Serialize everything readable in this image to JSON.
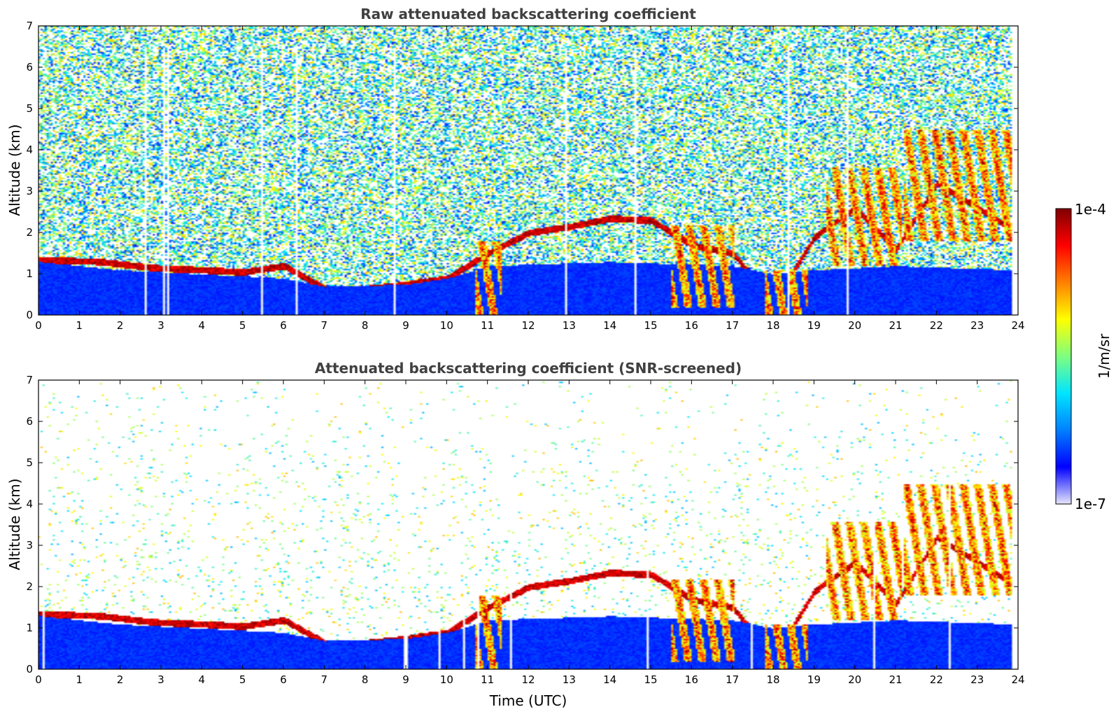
{
  "chart_data": [
    {
      "type": "heatmap",
      "title": "Raw attenuated backscattering coefficient",
      "xlabel": "",
      "ylabel": "Altitude (km)",
      "xlim": [
        0,
        24
      ],
      "ylim": [
        0,
        7
      ],
      "x_ticks": [
        "0",
        "1",
        "2",
        "3",
        "4",
        "5",
        "6",
        "7",
        "8",
        "9",
        "10",
        "11",
        "12",
        "13",
        "14",
        "15",
        "16",
        "17",
        "18",
        "19",
        "20",
        "21",
        "22",
        "23",
        "24"
      ],
      "y_ticks": [
        "0",
        "1",
        "2",
        "3",
        "4",
        "5",
        "6",
        "7"
      ],
      "features": {
        "boundary_layer_top_km": [
          [
            0,
            1.3
          ],
          [
            2,
            1.1
          ],
          [
            4,
            1.0
          ],
          [
            6,
            0.9
          ],
          [
            7,
            0.7
          ],
          [
            9,
            0.75
          ],
          [
            10,
            0.9
          ],
          [
            11,
            1.2
          ],
          [
            14,
            1.3
          ],
          [
            17,
            1.2
          ],
          [
            18,
            1.0
          ],
          [
            19,
            1.1
          ],
          [
            21,
            1.2
          ],
          [
            24,
            1.1
          ]
        ],
        "cloud_layer_km": [
          [
            0,
            1.35
          ],
          [
            1.5,
            1.3
          ],
          [
            2.8,
            1.15
          ],
          [
            4,
            1.1
          ],
          [
            5,
            1.05
          ],
          [
            6,
            1.2
          ],
          [
            7,
            0.65
          ],
          [
            8,
            0.65
          ],
          [
            9,
            0.75
          ],
          [
            10,
            0.9
          ],
          [
            11,
            1.5
          ],
          [
            12,
            2.0
          ],
          [
            13,
            2.15
          ],
          [
            14,
            2.35
          ],
          [
            15,
            2.3
          ],
          [
            16,
            1.7
          ],
          [
            17,
            1.5
          ],
          [
            18,
            0.3
          ],
          [
            19,
            1.9
          ],
          [
            20,
            2.6
          ],
          [
            21,
            1.6
          ],
          [
            22,
            3.2
          ],
          [
            23,
            2.6
          ],
          [
            23.8,
            2.1
          ]
        ],
        "thick_plumes": [
          {
            "t0": 10.7,
            "t1": 11.3,
            "z0": 0,
            "z1": 1.8
          },
          {
            "t0": 15.5,
            "t1": 17.0,
            "z0": 0.2,
            "z1": 2.2
          },
          {
            "t0": 17.8,
            "t1": 18.8,
            "z0": 0,
            "z1": 1.1
          },
          {
            "t0": 19.3,
            "t1": 21.1,
            "z0": 1.2,
            "z1": 3.6
          },
          {
            "t0": 21.2,
            "t1": 23.8,
            "z0": 1.8,
            "z1": 4.5
          }
        ],
        "screened": false
      }
    },
    {
      "type": "heatmap",
      "title": "Attenuated backscattering coefficient (SNR-screened)",
      "xlabel": "Time (UTC)",
      "ylabel": "Altitude (km)",
      "xlim": [
        0,
        24
      ],
      "ylim": [
        0,
        7
      ],
      "x_ticks": [
        "0",
        "1",
        "2",
        "3",
        "4",
        "5",
        "6",
        "7",
        "8",
        "9",
        "10",
        "11",
        "12",
        "13",
        "14",
        "15",
        "16",
        "17",
        "18",
        "19",
        "20",
        "21",
        "22",
        "23",
        "24"
      ],
      "y_ticks": [
        "0",
        "1",
        "2",
        "3",
        "4",
        "5",
        "6",
        "7"
      ],
      "features": {
        "screened": true
      }
    }
  ],
  "colorbar": {
    "label": "1/m/sr",
    "max_label": "1e-4",
    "min_label": "1e-7",
    "scale": "log",
    "colormap_stops": [
      "#e6e6fa",
      "#0000ff",
      "#0080ff",
      "#00e5ff",
      "#7fff7f",
      "#ffff00",
      "#ff8000",
      "#ff0000",
      "#800000"
    ]
  }
}
